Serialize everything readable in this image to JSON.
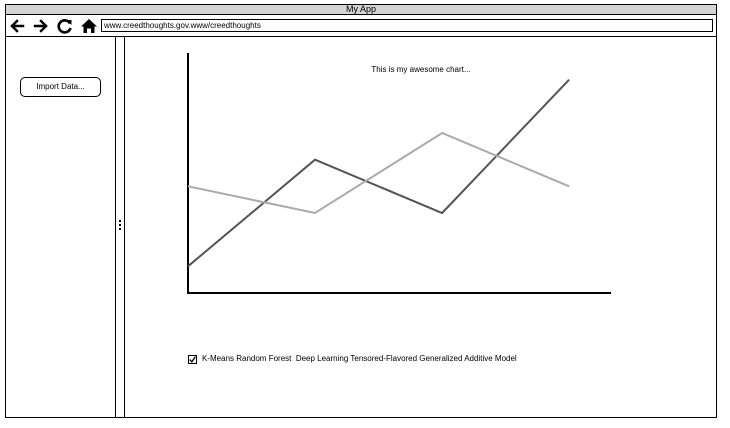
{
  "window": {
    "title": "My App"
  },
  "toolbar": {
    "back_icon": "arrow-left-icon",
    "forward_icon": "arrow-right-icon",
    "reload_icon": "reload-icon",
    "home_icon": "home-icon",
    "url": "www.creedthoughts.gov.www/creedthoughts"
  },
  "sidebar": {
    "import_label": "Import Data..."
  },
  "chart": {
    "title": "This is my awesome chart..."
  },
  "legend": {
    "checked": true,
    "label": "K-Means Random Forest  Deep Learning Tensored-Flavored Generalized Additive Model"
  },
  "chart_data": {
    "type": "line",
    "x": [
      1,
      2,
      3,
      4
    ],
    "series": [
      {
        "values": [
          1,
          5,
          3,
          8
        ],
        "color": "#555555"
      },
      {
        "values": [
          4,
          3,
          6,
          4
        ],
        "color": "#aaaaaa"
      }
    ],
    "ylim": [
      0,
      9
    ],
    "xlim": [
      1,
      4.33
    ],
    "grid": false
  }
}
